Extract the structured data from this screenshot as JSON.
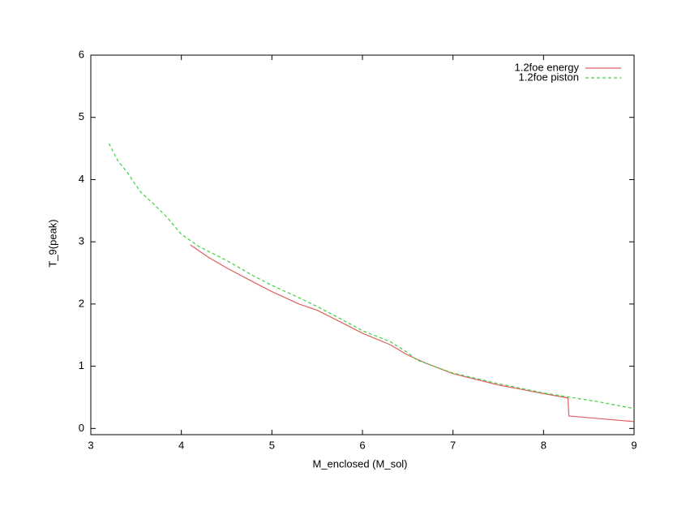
{
  "chart_data": {
    "type": "line",
    "x_label": "M_enclosed (M_sol)",
    "y_label": "T_9(peak)",
    "xlim": [
      3,
      9
    ],
    "ylim": [
      -0.1,
      6
    ],
    "xticks": [
      3,
      4,
      5,
      6,
      7,
      8,
      9
    ],
    "yticks": [
      0,
      1,
      2,
      3,
      4,
      5,
      6
    ],
    "legend": "top-right",
    "series": [
      {
        "name": "1.2foe energy",
        "color": "#e06060",
        "dash": false,
        "x": [
          4.1,
          4.3,
          4.5,
          4.8,
          5.0,
          5.3,
          5.5,
          5.8,
          6.0,
          6.3,
          6.5,
          6.7,
          7.0,
          7.5,
          8.0,
          8.27,
          8.28,
          8.6,
          9.0
        ],
        "values": [
          2.95,
          2.75,
          2.58,
          2.35,
          2.2,
          2.0,
          1.9,
          1.68,
          1.53,
          1.35,
          1.18,
          1.05,
          0.88,
          0.7,
          0.56,
          0.49,
          0.2,
          0.16,
          0.11
        ]
      },
      {
        "name": "1.2foe piston",
        "color": "#40d040",
        "dash": true,
        "x": [
          3.2,
          3.3,
          3.4,
          3.55,
          3.7,
          3.85,
          4.0,
          4.2,
          4.5,
          4.8,
          5.0,
          5.3,
          5.5,
          5.8,
          6.0,
          6.3,
          6.5,
          6.6,
          7.0,
          7.5,
          8.0,
          8.3,
          8.6,
          9.0
        ],
        "values": [
          4.58,
          4.3,
          4.12,
          3.8,
          3.6,
          3.38,
          3.12,
          2.92,
          2.7,
          2.45,
          2.3,
          2.1,
          1.96,
          1.73,
          1.57,
          1.4,
          1.22,
          1.1,
          0.89,
          0.72,
          0.57,
          0.5,
          0.43,
          0.32
        ]
      }
    ]
  }
}
